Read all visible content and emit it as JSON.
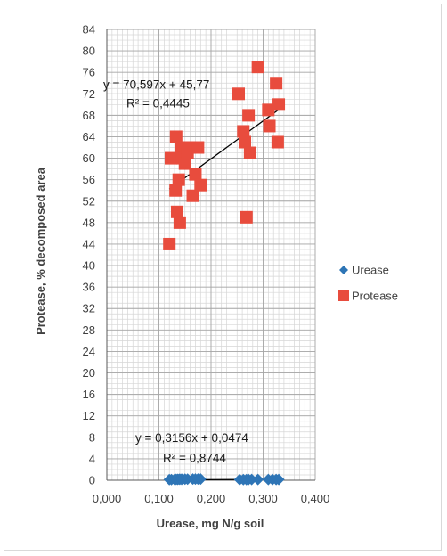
{
  "chart_data": {
    "type": "scatter",
    "xlabel": "Urease, mg N/g soil",
    "ylabel": "Protease, % decomposed area",
    "xlim": [
      0.0,
      0.4
    ],
    "ylim": [
      0,
      84
    ],
    "x_ticks": [
      "0,000",
      "0,100",
      "0,200",
      "0,300",
      "0,400"
    ],
    "y_ticks": [
      "0",
      "4",
      "8",
      "12",
      "16",
      "20",
      "24",
      "28",
      "32",
      "36",
      "40",
      "44",
      "48",
      "52",
      "56",
      "60",
      "64",
      "68",
      "72",
      "76",
      "80",
      "84"
    ],
    "grid": true,
    "legend_position": "right",
    "series": [
      {
        "name": "Urease",
        "marker": "diamond",
        "color": "#2e75b6",
        "x": [
          0.12,
          0.124,
          0.13,
          0.133,
          0.136,
          0.139,
          0.142,
          0.145,
          0.15,
          0.155,
          0.165,
          0.17,
          0.175,
          0.18,
          0.255,
          0.262,
          0.268,
          0.272,
          0.278,
          0.29,
          0.31,
          0.318,
          0.325,
          0.33
        ],
        "y": [
          0.12,
          0.13,
          0.15,
          0.16,
          0.17,
          0.18,
          0.19,
          0.19,
          0.2,
          0.21,
          0.22,
          0.22,
          0.23,
          0.23,
          0.13,
          0.13,
          0.13,
          0.14,
          0.14,
          0.14,
          0.14,
          0.15,
          0.15,
          0.15
        ],
        "trendline": {
          "equation": "y = 0,3156x + 0,0474",
          "r2": "R² = 0,8744",
          "slope": 0.3156,
          "intercept": 0.0474,
          "x_range": [
            0.12,
            0.33
          ]
        }
      },
      {
        "name": "Protease",
        "marker": "square",
        "color": "#e84c3d",
        "x": [
          0.12,
          0.123,
          0.132,
          0.133,
          0.135,
          0.138,
          0.14,
          0.142,
          0.145,
          0.15,
          0.152,
          0.155,
          0.16,
          0.165,
          0.17,
          0.175,
          0.18,
          0.253,
          0.262,
          0.265,
          0.268,
          0.272,
          0.275,
          0.29,
          0.31,
          0.312,
          0.325,
          0.328,
          0.33
        ],
        "y": [
          44,
          60,
          54,
          64,
          50,
          56,
          48,
          62,
          60,
          59,
          62,
          61,
          62,
          53,
          57,
          62,
          55,
          72,
          65,
          63,
          49,
          68,
          61,
          77,
          69,
          66,
          74,
          63,
          70
        ],
        "trendline": {
          "equation": "y = 70,597x + 45,77",
          "r2": "R² = 0,4445",
          "slope": 70.597,
          "intercept": 45.77,
          "x_range": [
            0.12,
            0.33
          ]
        }
      }
    ]
  }
}
